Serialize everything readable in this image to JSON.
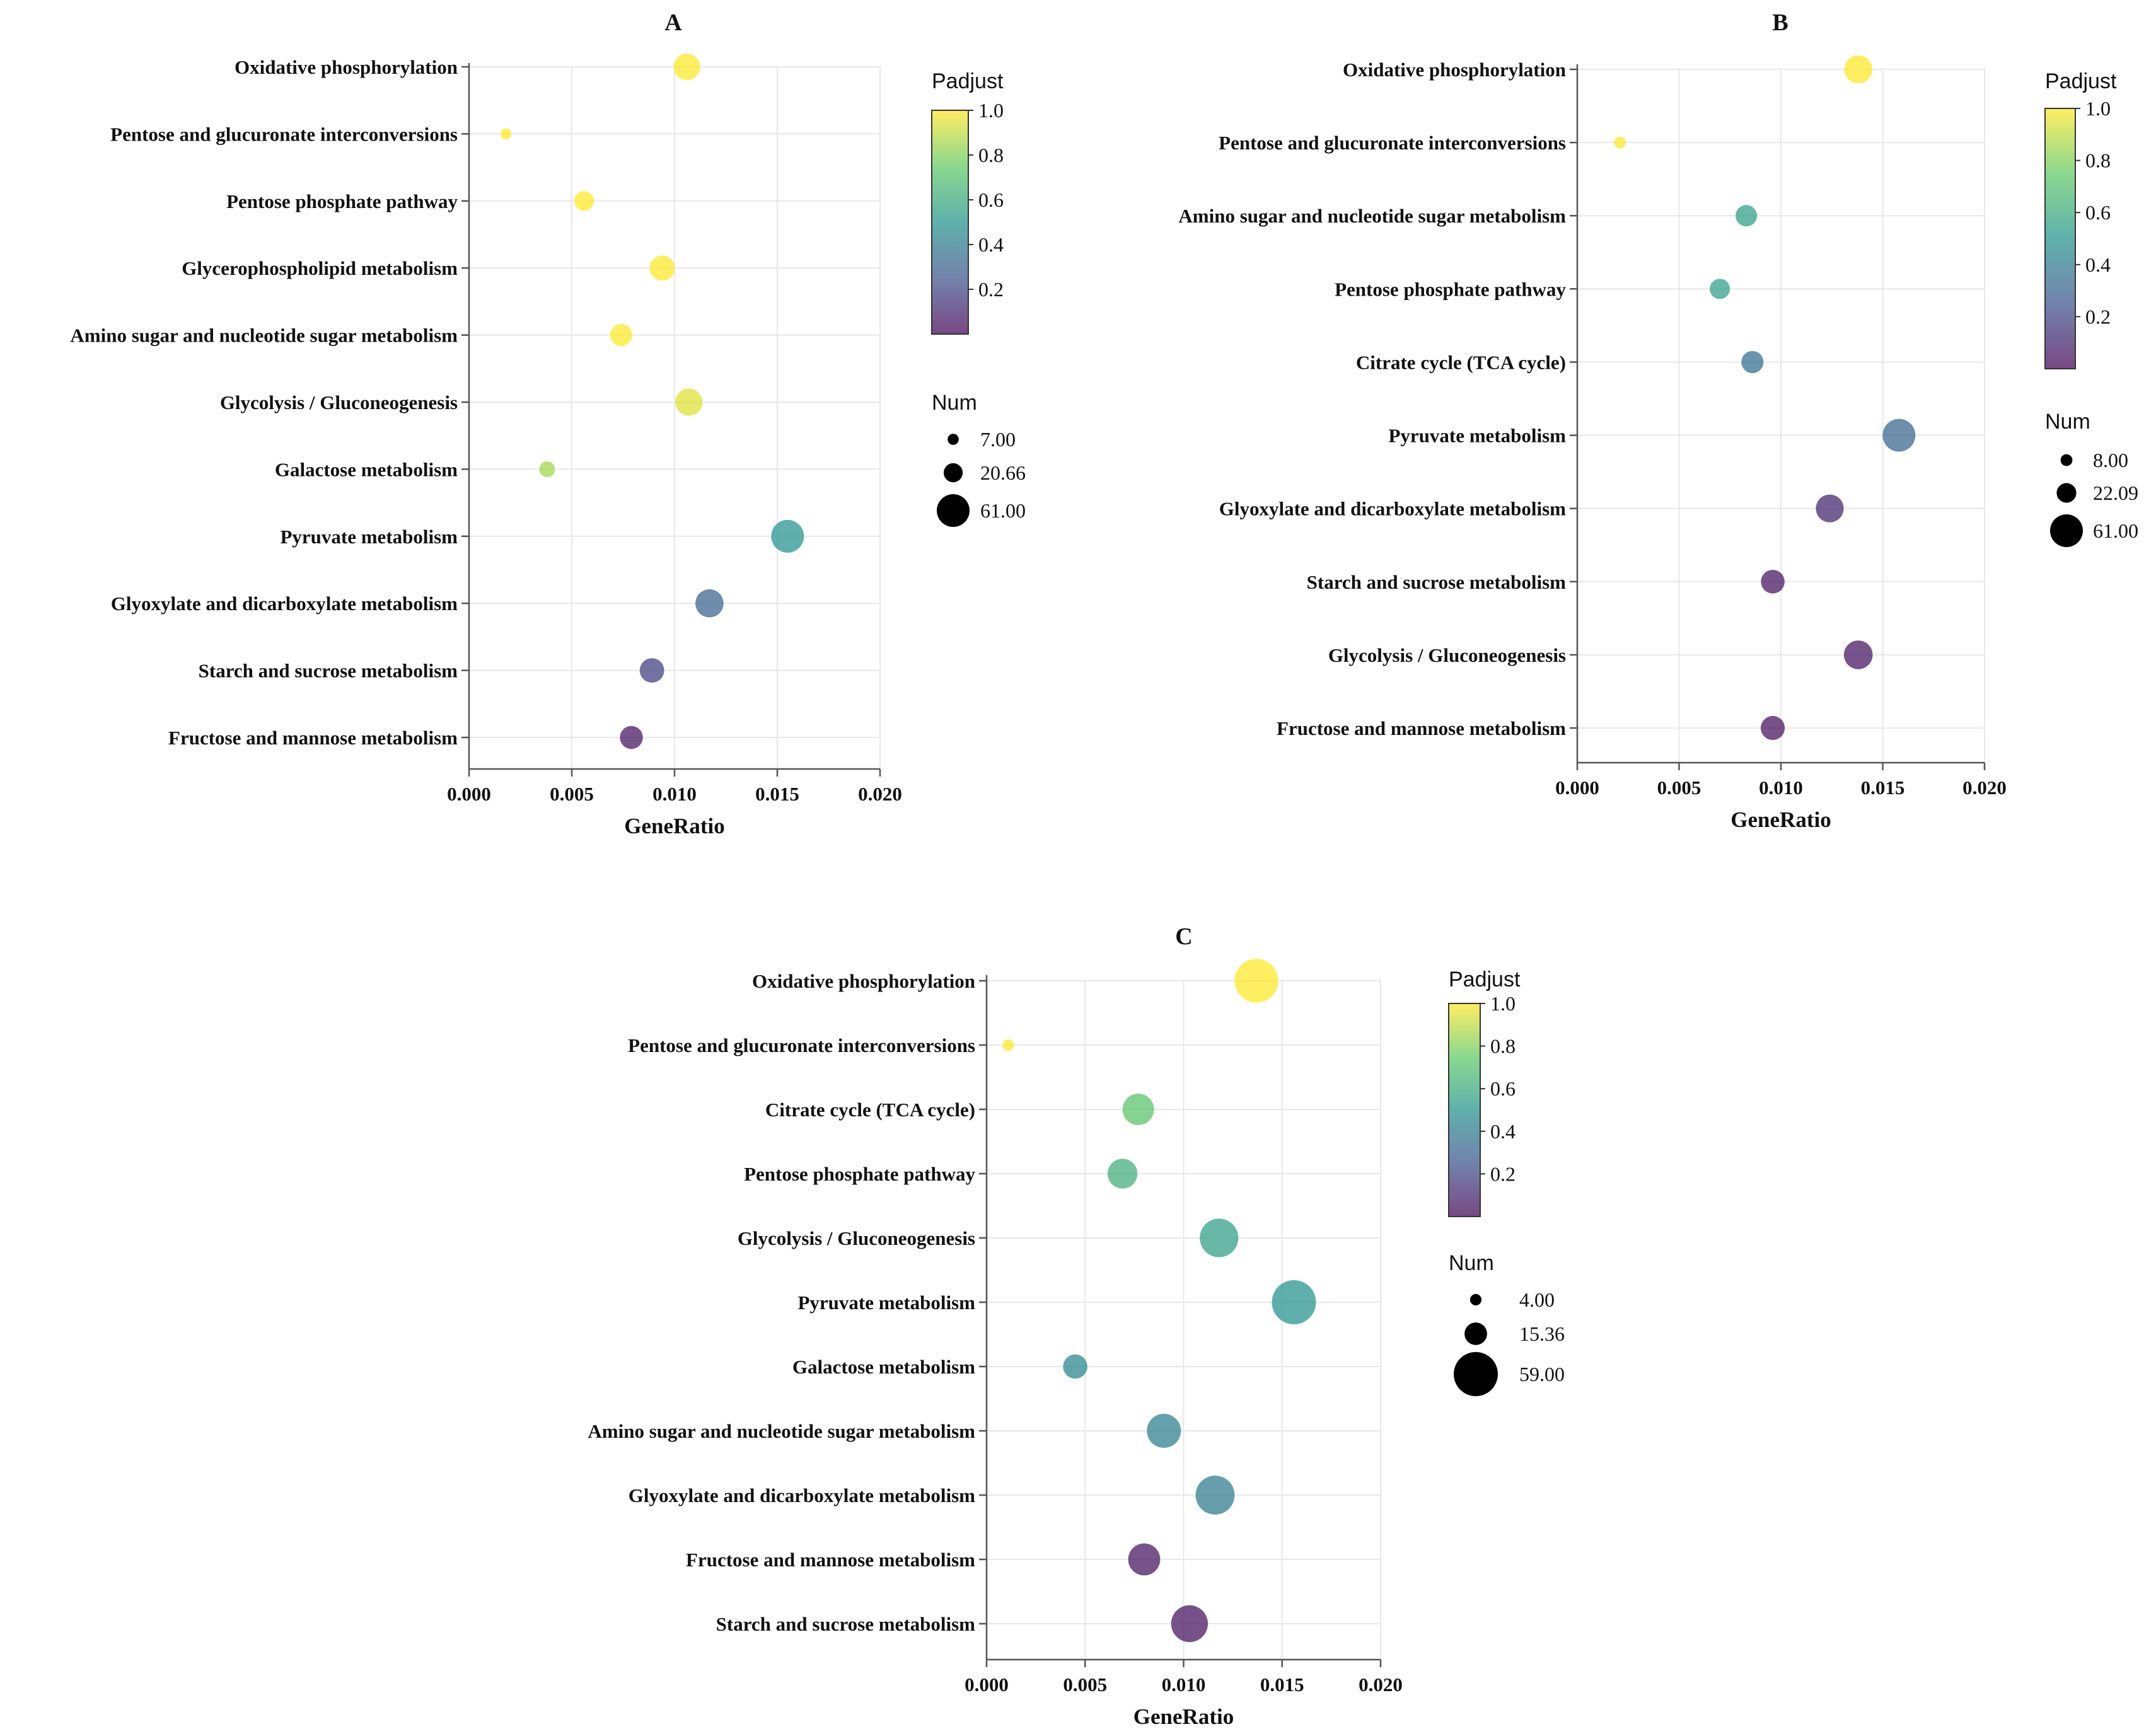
{
  "figure": {
    "panel_labels": [
      "A",
      "B",
      "C"
    ]
  },
  "colormap": [
    "#440154",
    "#3b528b",
    "#21918c",
    "#5ec962",
    "#fde725"
  ],
  "chart_data": [
    {
      "type": "scatter",
      "panel": "A",
      "title": "A",
      "xlabel": "GeneRatio",
      "ylabel": "",
      "xlim": [
        0.0,
        0.02
      ],
      "xticks": [
        "0.000",
        "0.005",
        "0.010",
        "0.015",
        "0.020"
      ],
      "grid": true,
      "categories": [
        "Oxidative phosphorylation",
        "Pentose and glucuronate interconversions",
        "Pentose phosphate pathway",
        "Glycerophospholipid metabolism",
        "Amino sugar and nucleotide sugar metabolism",
        "Glycolysis / Gluconeogenesis",
        "Galactose metabolism",
        "Pyruvate metabolism",
        "Glyoxylate and dicarboxylate metabolism",
        "Starch and sucrose metabolism",
        "Fructose and mannose metabolism"
      ],
      "gene_ratio": [
        0.0106,
        0.0018,
        0.0056,
        0.0094,
        0.0074,
        0.0107,
        0.0038,
        0.0155,
        0.0117,
        0.0089,
        0.0079
      ],
      "padjust": [
        1.0,
        1.0,
        1.0,
        1.0,
        1.0,
        0.95,
        0.85,
        0.5,
        0.3,
        0.18,
        0.05
      ],
      "num": [
        40,
        7,
        22,
        36,
        28,
        42,
        14,
        61,
        45,
        34,
        30
      ],
      "legend_placement": "right",
      "padjust_legend": {
        "title": "Padjust",
        "ticks": [
          "1.0",
          "0.8",
          "0.6",
          "0.4",
          "0.2"
        ],
        "tick_values": [
          1.0,
          0.8,
          0.6,
          0.4,
          0.2
        ],
        "range": [
          0.0,
          1.0
        ]
      },
      "num_legend": {
        "title": "Num",
        "labels": [
          "7.00",
          "20.66",
          "61.00"
        ],
        "values": [
          7,
          20.66,
          61
        ]
      }
    },
    {
      "type": "scatter",
      "panel": "B",
      "title": "B",
      "xlabel": "GeneRatio",
      "ylabel": "",
      "xlim": [
        0.0,
        0.02
      ],
      "xticks": [
        "0.000",
        "0.005",
        "0.010",
        "0.015",
        "0.020"
      ],
      "grid": true,
      "categories": [
        "Oxidative phosphorylation",
        "Pentose and glucuronate interconversions",
        "Amino sugar and nucleotide sugar metabolism",
        "Pentose phosphate pathway",
        "Citrate cycle (TCA cycle)",
        "Pyruvate metabolism",
        "Glyoxylate and dicarboxylate metabolism",
        "Starch and sucrose metabolism",
        "Glycolysis / Gluconeogenesis",
        "Fructose and mannose metabolism"
      ],
      "gene_ratio": [
        0.0138,
        0.0021,
        0.0083,
        0.007,
        0.0086,
        0.0158,
        0.0124,
        0.0096,
        0.0138,
        0.0096
      ],
      "padjust": [
        1.0,
        1.0,
        0.55,
        0.55,
        0.35,
        0.32,
        0.1,
        0.05,
        0.05,
        0.04
      ],
      "num": [
        45,
        8,
        26,
        23,
        28,
        61,
        44,
        32,
        47,
        33
      ],
      "legend_placement": "right",
      "padjust_legend": {
        "title": "Padjust",
        "ticks": [
          "1.0",
          "0.8",
          "0.6",
          "0.4",
          "0.2"
        ],
        "tick_values": [
          1.0,
          0.8,
          0.6,
          0.4,
          0.2
        ],
        "range": [
          0.0,
          1.0
        ]
      },
      "num_legend": {
        "title": "Num",
        "labels": [
          "8.00",
          "22.09",
          "61.00"
        ],
        "values": [
          8,
          22.09,
          61
        ]
      }
    },
    {
      "type": "scatter",
      "panel": "C",
      "title": "C",
      "xlabel": "GeneRatio",
      "ylabel": "",
      "xlim": [
        0.0,
        0.02
      ],
      "xticks": [
        "0.000",
        "0.005",
        "0.010",
        "0.015",
        "0.020"
      ],
      "grid": true,
      "categories": [
        "Oxidative phosphorylation",
        "Pentose and glucuronate interconversions",
        "Citrate cycle (TCA cycle)",
        "Pentose phosphate pathway",
        "Glycolysis / Gluconeogenesis",
        "Pyruvate metabolism",
        "Galactose metabolism",
        "Amino sugar and nucleotide sugar metabolism",
        "Glyoxylate and dicarboxylate metabolism",
        "Fructose and mannose metabolism",
        "Starch and sucrose metabolism"
      ],
      "gene_ratio": [
        0.0137,
        0.0011,
        0.0077,
        0.0069,
        0.0118,
        0.0156,
        0.0045,
        0.009,
        0.0116,
        0.008,
        0.0103
      ],
      "padjust": [
        1.0,
        1.0,
        0.72,
        0.62,
        0.55,
        0.5,
        0.45,
        0.42,
        0.4,
        0.05,
        0.04
      ],
      "num": [
        58,
        4,
        30,
        27,
        45,
        59,
        18,
        35,
        46,
        31,
        41
      ],
      "legend_placement": "right",
      "padjust_legend": {
        "title": "Padjust",
        "ticks": [
          "1.0",
          "0.8",
          "0.6",
          "0.4",
          "0.2"
        ],
        "tick_values": [
          1.0,
          0.8,
          0.6,
          0.4,
          0.2
        ],
        "range": [
          0.0,
          1.0
        ]
      },
      "num_legend": {
        "title": "Num",
        "labels": [
          "4.00",
          "15.36",
          "59.00"
        ],
        "values": [
          4,
          15.36,
          59
        ]
      }
    }
  ]
}
